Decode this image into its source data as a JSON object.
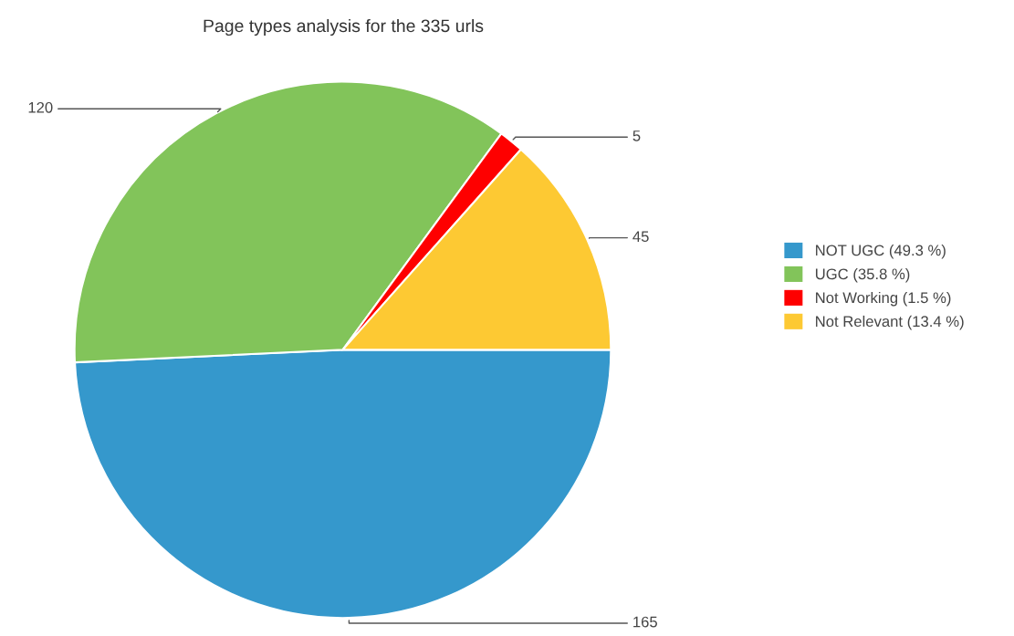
{
  "chart_data": {
    "type": "pie",
    "title": "Page types analysis for the 335 urls",
    "categories": [
      "NOT UGC (49.3 %)",
      "UGC (35.8 %)",
      "Not Working (1.5 %)",
      "Not Relevant (13.4 %)"
    ],
    "values": [
      165,
      120,
      5,
      45
    ],
    "colors": [
      "#3598cc",
      "#82c45a",
      "#fe0000",
      "#fdc933"
    ],
    "data_labels": true,
    "legend": "right"
  }
}
